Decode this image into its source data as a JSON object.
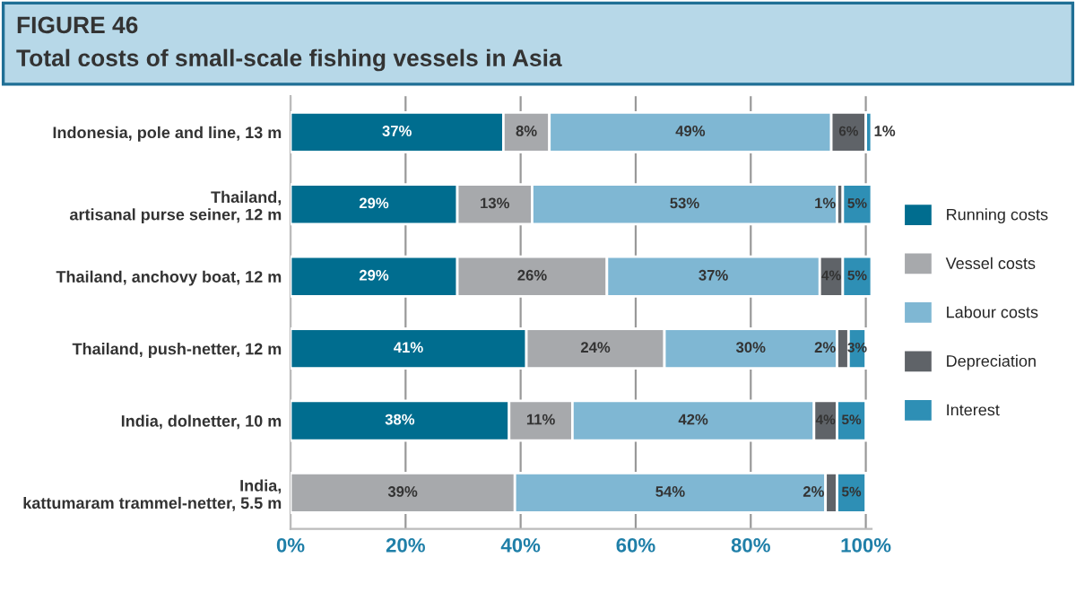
{
  "chart_data": {
    "type": "bar",
    "orientation": "horizontal",
    "stacked": true,
    "title": "FIGURE 46",
    "subtitle": "Total costs of small-scale fishing vessels in Asia",
    "categories": [
      "Indonesia, pole and line, 13 m",
      "Thailand,\nartisanal purse seiner, 12 m",
      "Thailand, anchovy boat, 12 m",
      "Thailand, push-netter, 12 m",
      "India, dolnetter, 10 m",
      "India,\nkattumaram trammel-netter, 5.5 m"
    ],
    "series": [
      {
        "name": "Running costs",
        "color": "#006d8f",
        "values": [
          37,
          29,
          29,
          41,
          38,
          0
        ],
        "value_labels": [
          "37%",
          "29%",
          "29%",
          "41%",
          "38%",
          null
        ]
      },
      {
        "name": "Vessel costs",
        "color": "#a7a9ac",
        "values": [
          8,
          13,
          26,
          24,
          11,
          39
        ],
        "value_labels": [
          "8%",
          "13%",
          "26%",
          "24%",
          "11%",
          "39%"
        ]
      },
      {
        "name": "Labour costs",
        "color": "#7fb7d3",
        "values": [
          49,
          53,
          37,
          30,
          42,
          54
        ],
        "value_labels": [
          "49%",
          "53%",
          "37%",
          "30%",
          "42%",
          "54%"
        ]
      },
      {
        "name": "Depreciation",
        "color": "#5f6368",
        "values": [
          6,
          1,
          4,
          2,
          4,
          2
        ],
        "value_labels": [
          "6%",
          "1%",
          "4%",
          "2%",
          "4%",
          "2%"
        ]
      },
      {
        "name": "Interest",
        "color": "#2e8fb5",
        "values": [
          1,
          5,
          5,
          3,
          5,
          5
        ],
        "value_labels": [
          "1%",
          "5%",
          "5%",
          "3%",
          "5%",
          "5%"
        ]
      }
    ],
    "xlim": [
      0,
      101
    ],
    "xticks": [
      {
        "value": 0,
        "label": "0%"
      },
      {
        "value": 20,
        "label": "20%"
      },
      {
        "value": 40,
        "label": "40%"
      },
      {
        "value": 60,
        "label": "60%"
      },
      {
        "value": 80,
        "label": "80%"
      },
      {
        "value": 100,
        "label": "100%"
      }
    ],
    "grid": "x",
    "legend": "right"
  }
}
